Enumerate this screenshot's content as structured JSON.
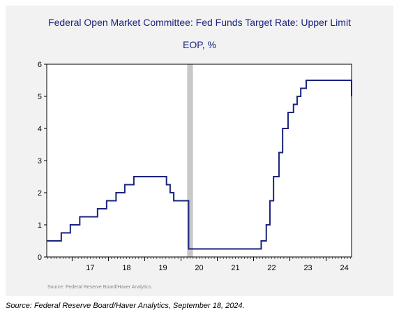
{
  "chart_data": {
    "type": "line",
    "title": "Federal Open Market Committee: Fed Funds Target Rate: Upper Limit",
    "subtitle": "EOP, %",
    "xlabel": "",
    "ylabel": "",
    "x_ticks": [
      "17",
      "18",
      "19",
      "20",
      "21",
      "22",
      "23",
      "24"
    ],
    "y_ticks": [
      "0",
      "1",
      "2",
      "3",
      "4",
      "5",
      "6"
    ],
    "xlim": [
      2016.3,
      2024.7
    ],
    "ylim": [
      0,
      6
    ],
    "grid": false,
    "legend": "none",
    "line_color": "#1a237e",
    "recession_color": "#c8c8c8",
    "recession": [
      2020.17,
      2020.33
    ],
    "series": [
      {
        "step": true,
        "x": [
          2016.3,
          2016.45,
          2016.7,
          2016.95,
          2017.21,
          2017.45,
          2017.7,
          2017.95,
          2018.21,
          2018.45,
          2018.7,
          2019.6,
          2019.7,
          2019.8,
          2020.17,
          2020.21,
          2022.21,
          2022.35,
          2022.45,
          2022.55,
          2022.7,
          2022.8,
          2022.95,
          2023.1,
          2023.2,
          2023.3,
          2023.45,
          2024.7
        ],
        "y": [
          0.5,
          0.5,
          0.75,
          1.0,
          1.25,
          1.25,
          1.5,
          1.75,
          2.0,
          2.25,
          2.5,
          2.25,
          2.0,
          1.75,
          1.75,
          0.25,
          0.5,
          1.0,
          1.75,
          2.5,
          3.25,
          4.0,
          4.5,
          4.75,
          5.0,
          5.25,
          5.5,
          5.0
        ]
      }
    ],
    "source_note": "Source:  Federal Reserve Board/Haver Analytics"
  },
  "caption": "Source: Federal Reserve Board/Haver Analytics, September 18, 2024."
}
